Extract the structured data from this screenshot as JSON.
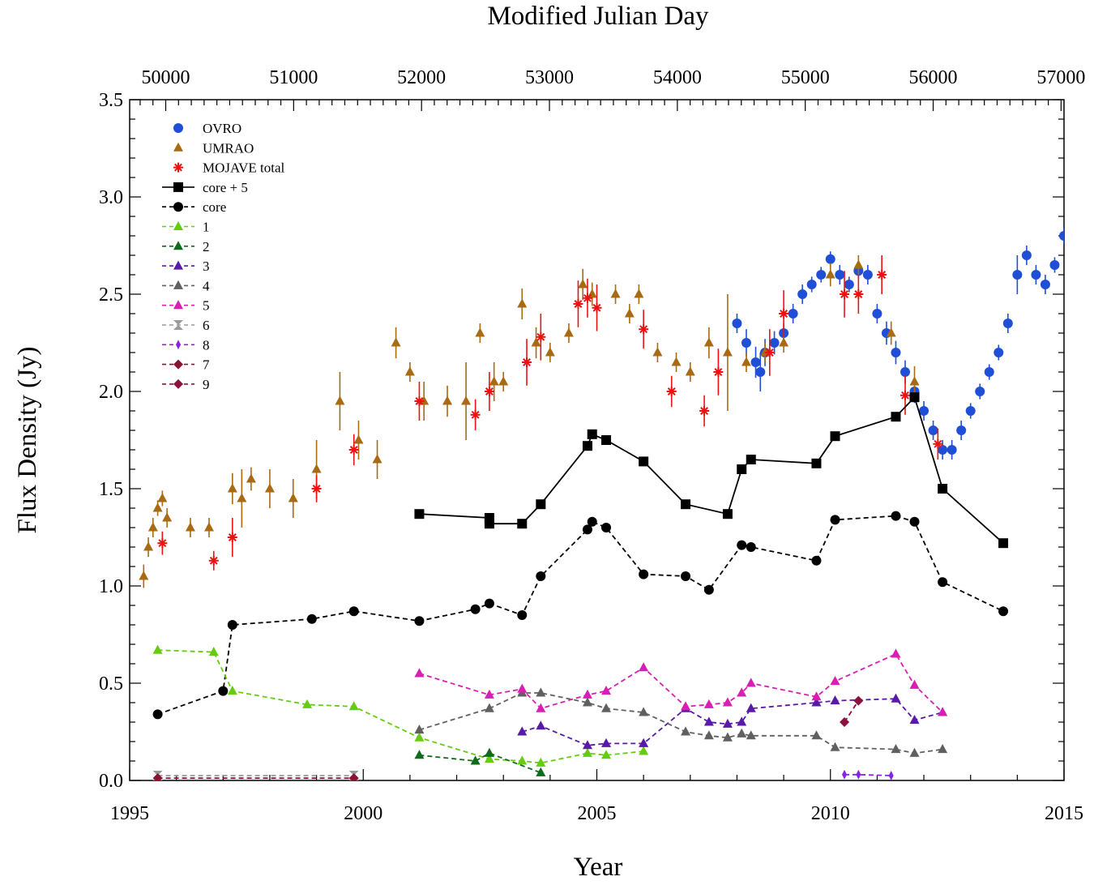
{
  "chart_data": {
    "type": "scatter",
    "title": "",
    "xlabel": "Year",
    "ylabel": "Flux Density (Jy)",
    "top_xlabel": "Modified Julian Day",
    "xlim": [
      1995,
      2015
    ],
    "ylim": [
      0,
      3.5
    ],
    "x_ticks": [
      1995,
      2000,
      2005,
      2010,
      2015
    ],
    "y_ticks": [
      0.0,
      0.5,
      1.0,
      1.5,
      2.0,
      2.5,
      3.0,
      3.5
    ],
    "y_tick_labels": [
      "0.0",
      "0.5",
      "1.0",
      "1.5",
      "2.0",
      "2.5",
      "3.0",
      "3.5"
    ],
    "top_ticks": [
      50000,
      51000,
      52000,
      53000,
      54000,
      55000,
      56000,
      57000
    ],
    "mjd_of_1995": 49718,
    "days_per_year": 365.25,
    "legend_position": "top-left",
    "series": [
      {
        "name": "OVRO",
        "marker": "circle",
        "color": "#1f4fd6",
        "line": "none",
        "x": [
          2008.0,
          2008.2,
          2008.4,
          2008.5,
          2008.6,
          2008.8,
          2009.0,
          2009.2,
          2009.4,
          2009.6,
          2009.8,
          2010.0,
          2010.2,
          2010.4,
          2010.6,
          2010.8,
          2011.0,
          2011.2,
          2011.4,
          2011.6,
          2011.8,
          2012.0,
          2012.2,
          2012.4,
          2012.6,
          2012.8,
          2013.0,
          2013.2,
          2013.4,
          2013.6,
          2013.8,
          2014.0,
          2014.2,
          2014.4,
          2014.6,
          2014.8,
          2015.0
        ],
        "y": [
          2.35,
          2.25,
          2.15,
          2.1,
          2.2,
          2.25,
          2.3,
          2.4,
          2.5,
          2.55,
          2.6,
          2.68,
          2.6,
          2.55,
          2.62,
          2.6,
          2.4,
          2.3,
          2.2,
          2.1,
          2.0,
          1.9,
          1.8,
          1.7,
          1.7,
          1.8,
          1.9,
          2.0,
          2.1,
          2.2,
          2.35,
          2.6,
          2.7,
          2.6,
          2.55,
          2.65,
          2.8
        ],
        "yerr": [
          0.05,
          0.07,
          0.08,
          0.1,
          0.07,
          0.06,
          0.05,
          0.05,
          0.05,
          0.04,
          0.04,
          0.04,
          0.05,
          0.04,
          0.04,
          0.05,
          0.05,
          0.06,
          0.06,
          0.06,
          0.06,
          0.05,
          0.05,
          0.05,
          0.05,
          0.05,
          0.04,
          0.04,
          0.04,
          0.04,
          0.05,
          0.1,
          0.05,
          0.05,
          0.05,
          0.04,
          0.04
        ]
      },
      {
        "name": "UMRAO",
        "marker": "triangle",
        "color": "#a86a12",
        "line": "none",
        "x": [
          1995.3,
          1995.4,
          1995.5,
          1995.6,
          1995.7,
          1995.8,
          1996.3,
          1996.7,
          1997.2,
          1997.4,
          1997.6,
          1998.0,
          1998.5,
          1999.0,
          1999.5,
          1999.9,
          2000.3,
          2000.7,
          2001.0,
          2001.3,
          2001.8,
          2002.2,
          2002.5,
          2002.8,
          2003.0,
          2003.4,
          2003.7,
          2004.0,
          2004.4,
          2004.7,
          2004.9,
          2005.4,
          2005.7,
          2005.9,
          2006.3,
          2006.7,
          2007.0,
          2007.4,
          2007.8,
          2008.2,
          2008.6,
          2009.0,
          2010.0,
          2010.6,
          2011.3,
          2011.8
        ],
        "y": [
          1.05,
          1.2,
          1.3,
          1.4,
          1.45,
          1.35,
          1.3,
          1.3,
          1.5,
          1.45,
          1.55,
          1.5,
          1.45,
          1.6,
          1.95,
          1.75,
          1.65,
          2.25,
          2.1,
          1.95,
          1.95,
          1.95,
          2.3,
          2.05,
          2.05,
          2.45,
          2.25,
          2.2,
          2.3,
          2.55,
          2.5,
          2.5,
          2.4,
          2.5,
          2.2,
          2.15,
          2.1,
          2.25,
          2.2,
          2.15,
          2.2,
          2.25,
          2.6,
          2.65,
          2.3,
          2.05
        ],
        "yerr": [
          0.06,
          0.05,
          0.05,
          0.04,
          0.04,
          0.05,
          0.05,
          0.05,
          0.08,
          0.15,
          0.06,
          0.1,
          0.1,
          0.15,
          0.15,
          0.1,
          0.1,
          0.08,
          0.05,
          0.1,
          0.08,
          0.2,
          0.05,
          0.1,
          0.05,
          0.08,
          0.08,
          0.05,
          0.05,
          0.08,
          0.06,
          0.05,
          0.05,
          0.05,
          0.05,
          0.05,
          0.05,
          0.08,
          0.3,
          0.05,
          0.05,
          0.05,
          0.06,
          0.05,
          0.06,
          0.08
        ]
      },
      {
        "name": "MOJAVE total",
        "marker": "asterisk",
        "color": "#ee1111",
        "line": "none",
        "x": [
          1995.7,
          1996.8,
          1997.2,
          1999.0,
          1999.8,
          2001.2,
          2002.4,
          2002.7,
          2003.5,
          2003.8,
          2004.6,
          2004.8,
          2005.0,
          2006.0,
          2006.6,
          2007.3,
          2007.6,
          2008.7,
          2009.0,
          2010.3,
          2010.6,
          2011.1,
          2011.6,
          2012.3
        ],
        "y": [
          1.22,
          1.13,
          1.25,
          1.5,
          1.7,
          1.95,
          1.88,
          2.0,
          2.15,
          2.28,
          2.45,
          2.48,
          2.43,
          2.32,
          2.0,
          1.9,
          2.1,
          2.2,
          2.4,
          2.5,
          2.5,
          2.6,
          1.98,
          1.73
        ],
        "yerr": [
          0.06,
          0.05,
          0.1,
          0.07,
          0.08,
          0.1,
          0.08,
          0.1,
          0.12,
          0.12,
          0.12,
          0.1,
          0.12,
          0.1,
          0.08,
          0.08,
          0.12,
          0.12,
          0.12,
          0.12,
          0.1,
          0.1,
          0.1,
          0.08
        ]
      },
      {
        "name": "core + 5",
        "marker": "square",
        "color": "#000000",
        "line": "solid",
        "x": [
          2001.2,
          2002.7,
          2002.7,
          2003.4,
          2003.8,
          2004.8,
          2004.9,
          2005.2,
          2006.0,
          2006.9,
          2007.8,
          2008.1,
          2008.3,
          2009.7,
          2010.1,
          2011.4,
          2011.8,
          2012.4,
          2013.7
        ],
        "y": [
          1.37,
          1.35,
          1.32,
          1.32,
          1.42,
          1.72,
          1.78,
          1.75,
          1.64,
          1.42,
          1.37,
          1.6,
          1.65,
          1.63,
          1.77,
          1.87,
          1.97,
          1.5,
          1.22
        ]
      },
      {
        "name": "core",
        "marker": "circle",
        "color": "#000000",
        "line": "dashed",
        "x": [
          1995.6,
          1997.0,
          1997.2,
          1998.9,
          1999.8,
          2001.2,
          2002.4,
          2002.7,
          2003.4,
          2003.8,
          2004.8,
          2004.9,
          2005.2,
          2006.0,
          2006.9,
          2007.4,
          2008.1,
          2008.3,
          2009.7,
          2010.1,
          2011.4,
          2011.8,
          2012.4,
          2013.7
        ],
        "y": [
          0.34,
          0.46,
          0.8,
          0.83,
          0.87,
          0.82,
          0.88,
          0.91,
          0.85,
          1.05,
          1.29,
          1.33,
          1.3,
          1.06,
          1.05,
          0.98,
          1.21,
          1.2,
          1.13,
          1.34,
          1.36,
          1.33,
          1.02,
          0.87
        ]
      },
      {
        "name": "1",
        "marker": "triangle",
        "color": "#66cc11",
        "line": "dashed",
        "x": [
          1995.6,
          1996.8,
          1997.2,
          1998.8,
          1999.8,
          2001.2,
          2002.7,
          2003.4,
          2003.8,
          2004.8,
          2005.2,
          2006.0
        ],
        "y": [
          0.67,
          0.66,
          0.46,
          0.39,
          0.38,
          0.22,
          0.11,
          0.1,
          0.09,
          0.14,
          0.13,
          0.15
        ]
      },
      {
        "name": "2",
        "marker": "triangle",
        "color": "#0e6b1a",
        "line": "dashed",
        "x": [
          2001.2,
          2002.4,
          2002.7,
          2003.8
        ],
        "y": [
          0.13,
          0.1,
          0.14,
          0.04
        ]
      },
      {
        "name": "3",
        "marker": "triangle",
        "color": "#5a1aa8",
        "line": "dashed",
        "x": [
          2003.4,
          2003.8,
          2004.8,
          2005.2,
          2006.0,
          2006.9,
          2007.4,
          2007.8,
          2008.1,
          2008.3,
          2009.7,
          2010.1,
          2011.4,
          2011.8,
          2012.4
        ],
        "y": [
          0.25,
          0.28,
          0.18,
          0.19,
          0.19,
          0.37,
          0.3,
          0.29,
          0.3,
          0.37,
          0.4,
          0.41,
          0.42,
          0.31,
          0.35
        ]
      },
      {
        "name": "4",
        "marker": "triangle",
        "color": "#606060",
        "line": "dashed",
        "x": [
          2001.2,
          2002.7,
          2003.4,
          2003.8,
          2004.8,
          2005.2,
          2006.0,
          2006.9,
          2007.4,
          2007.8,
          2008.1,
          2008.3,
          2009.7,
          2010.1,
          2011.4,
          2011.8,
          2012.4
        ],
        "y": [
          0.26,
          0.37,
          0.45,
          0.45,
          0.4,
          0.37,
          0.35,
          0.25,
          0.23,
          0.22,
          0.24,
          0.23,
          0.23,
          0.17,
          0.16,
          0.14,
          0.16
        ]
      },
      {
        "name": "5",
        "marker": "triangle",
        "color": "#d81fb4",
        "line": "dashed",
        "x": [
          2001.2,
          2002.7,
          2003.4,
          2003.8,
          2004.8,
          2005.2,
          2006.0,
          2006.9,
          2007.4,
          2007.8,
          2008.1,
          2008.3,
          2009.7,
          2010.1,
          2011.4,
          2011.8,
          2012.4
        ],
        "y": [
          0.55,
          0.44,
          0.47,
          0.37,
          0.44,
          0.46,
          0.58,
          0.38,
          0.39,
          0.4,
          0.45,
          0.5,
          0.43,
          0.51,
          0.65,
          0.49,
          0.35
        ]
      },
      {
        "name": "6",
        "marker": "hourglass",
        "color": "#9a9a9a",
        "line": "dashed",
        "x": [
          1995.6,
          1999.8
        ],
        "y": [
          0.025,
          0.025
        ]
      },
      {
        "name": "8",
        "marker": "thin-diamond",
        "color": "#8a22e6",
        "line": "dashed",
        "x": [
          2010.3,
          2010.6,
          2011.3
        ],
        "y": [
          0.03,
          0.03,
          0.025
        ]
      },
      {
        "name": "7",
        "marker": "diamond",
        "color": "#8b1230",
        "line": "dashed",
        "x": [
          1995.6,
          1999.8
        ],
        "y": [
          0.012,
          0.012
        ]
      },
      {
        "name": "9",
        "marker": "diamond",
        "color": "#8b1240",
        "line": "dashed",
        "x": [
          2010.3,
          2010.6
        ],
        "y": [
          0.3,
          0.41
        ]
      }
    ]
  }
}
